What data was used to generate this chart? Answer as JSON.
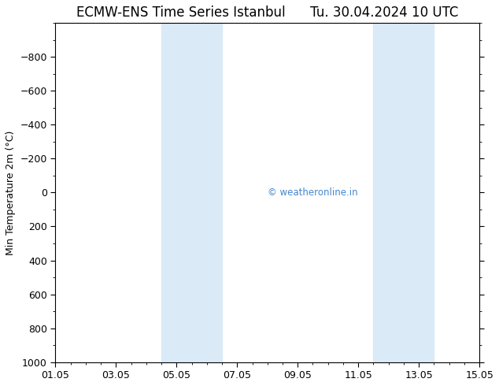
{
  "title": "ECMW-ENS Time Series Istanbul      Tu. 30.04.2024 10 UTC",
  "ylabel": "Min Temperature 2m (°C)",
  "ylim": [
    -1000,
    1000
  ],
  "yticks": [
    -800,
    -600,
    -400,
    -200,
    0,
    200,
    400,
    600,
    800,
    1000
  ],
  "xlim_start": 0,
  "xlim_end": 14,
  "xtick_positions": [
    0,
    2,
    4,
    6,
    8,
    10,
    12,
    14
  ],
  "xtick_labels": [
    "01.05",
    "03.05",
    "05.05",
    "07.05",
    "09.05",
    "11.05",
    "13.05",
    "15.05"
  ],
  "shaded_bands": [
    {
      "xmin": 3.5,
      "xmax": 5.5
    },
    {
      "xmin": 10.5,
      "xmax": 12.5
    }
  ],
  "shade_color": "#dbeaf7",
  "watermark": "© weatheronline.in",
  "watermark_color": "#4488cc",
  "background_color": "#ffffff",
  "title_fontsize": 12,
  "axis_fontsize": 9,
  "tick_fontsize": 9
}
